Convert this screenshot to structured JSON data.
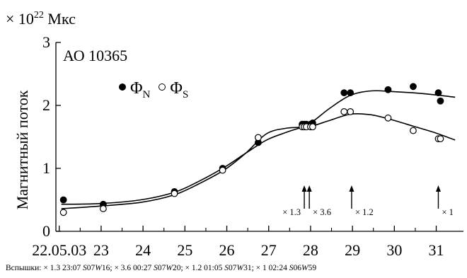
{
  "chart_data": {
    "type": "line",
    "unit_prefix": "× 10",
    "unit_exponent": "22",
    "unit_suffix": " Мкс",
    "ylabel": "Магнитный поток",
    "region": "АО 10365",
    "ylim": [
      0,
      3
    ],
    "xlim": [
      21.97,
      31.7
    ],
    "yticks": [
      0,
      1,
      2,
      3
    ],
    "xticks": [
      {
        "x": 22.05,
        "label": "22.05.03"
      },
      {
        "x": 23.05,
        "label": "23"
      },
      {
        "x": 24.05,
        "label": "24"
      },
      {
        "x": 25.05,
        "label": "25"
      },
      {
        "x": 26.05,
        "label": "26"
      },
      {
        "x": 27.05,
        "label": "27"
      },
      {
        "x": 28.05,
        "label": "28"
      },
      {
        "x": 29.05,
        "label": "29"
      },
      {
        "x": 30.05,
        "label": "30"
      },
      {
        "x": 31.05,
        "label": "31"
      }
    ],
    "legend": [
      {
        "symbol": "filled",
        "main": "Φ",
        "sub": "N"
      },
      {
        "symbol": "open",
        "main": "Φ",
        "sub": "S"
      }
    ],
    "series": [
      {
        "name": "ΦN",
        "marker": "filled",
        "points": [
          [
            22.15,
            0.5
          ],
          [
            23.1,
            0.43
          ],
          [
            24.8,
            0.63
          ],
          [
            25.95,
            1.0
          ],
          [
            26.8,
            1.41
          ],
          [
            27.85,
            1.7
          ],
          [
            27.9,
            1.7
          ],
          [
            27.95,
            1.7
          ],
          [
            28.05,
            1.7
          ],
          [
            28.1,
            1.72
          ],
          [
            28.85,
            2.2
          ],
          [
            29.0,
            2.2
          ],
          [
            29.9,
            2.25
          ],
          [
            30.5,
            2.3
          ],
          [
            31.1,
            2.2
          ],
          [
            31.15,
            2.07
          ]
        ],
        "curve": [
          [
            22.1,
            0.43
          ],
          [
            23.0,
            0.44
          ],
          [
            24.0,
            0.5
          ],
          [
            24.8,
            0.62
          ],
          [
            25.4,
            0.8
          ],
          [
            26.0,
            1.02
          ],
          [
            26.5,
            1.24
          ],
          [
            27.0,
            1.45
          ],
          [
            27.5,
            1.58
          ],
          [
            28.0,
            1.7
          ],
          [
            28.5,
            1.95
          ],
          [
            29.0,
            2.16
          ],
          [
            29.5,
            2.23
          ],
          [
            30.0,
            2.22
          ],
          [
            30.5,
            2.2
          ],
          [
            31.0,
            2.17
          ],
          [
            31.5,
            2.13
          ]
        ]
      },
      {
        "name": "ΦS",
        "marker": "open",
        "points": [
          [
            22.15,
            0.3
          ],
          [
            23.1,
            0.36
          ],
          [
            24.8,
            0.6
          ],
          [
            25.95,
            0.97
          ],
          [
            26.8,
            1.49
          ],
          [
            27.85,
            1.66
          ],
          [
            27.9,
            1.66
          ],
          [
            27.95,
            1.66
          ],
          [
            28.05,
            1.66
          ],
          [
            28.1,
            1.66
          ],
          [
            28.85,
            1.9
          ],
          [
            29.0,
            1.9
          ],
          [
            29.9,
            1.8
          ],
          [
            30.5,
            1.6
          ],
          [
            31.1,
            1.47
          ],
          [
            31.15,
            1.47
          ]
        ],
        "curve": [
          [
            22.1,
            0.36
          ],
          [
            23.0,
            0.4
          ],
          [
            24.0,
            0.46
          ],
          [
            24.8,
            0.58
          ],
          [
            25.4,
            0.76
          ],
          [
            26.0,
            0.98
          ],
          [
            26.5,
            1.24
          ],
          [
            27.0,
            1.55
          ],
          [
            27.5,
            1.64
          ],
          [
            28.0,
            1.66
          ],
          [
            28.5,
            1.76
          ],
          [
            29.0,
            1.86
          ],
          [
            29.5,
            1.85
          ],
          [
            30.0,
            1.77
          ],
          [
            30.5,
            1.67
          ],
          [
            31.0,
            1.57
          ],
          [
            31.5,
            1.45
          ]
        ]
      }
    ],
    "flares": [
      {
        "x": 27.9,
        "label": "× 1.3",
        "label_side": "left"
      },
      {
        "x": 28.02,
        "label": "× 3.6",
        "label_side": "right"
      },
      {
        "x": 29.03,
        "label": "× 1.2",
        "label_side": "right"
      },
      {
        "x": 31.1,
        "label": "× 1",
        "label_side": "right"
      }
    ]
  },
  "footnote": {
    "prefix": "Вспышки: ",
    "entries": [
      {
        "text": "× 1.3 23:07 ",
        "loc": [
          "S",
          "07",
          "W",
          "16"
        ]
      },
      {
        "text": "× 3.6 00:27 ",
        "loc": [
          "S",
          "07",
          "W",
          "20"
        ]
      },
      {
        "text": "× 1.2 01:05 ",
        "loc": [
          "S",
          "07",
          "W",
          "31"
        ]
      },
      {
        "text": "× 1 02:24 ",
        "loc": [
          "S",
          "06",
          "W",
          "59"
        ]
      }
    ]
  }
}
